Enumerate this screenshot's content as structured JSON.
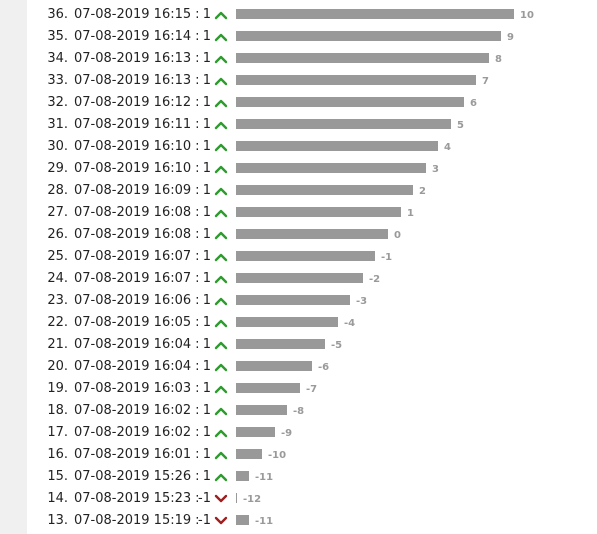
{
  "colors": {
    "up": "#2e9b2e",
    "down": "#a01e1e",
    "bar": "#999999",
    "score": "#9a9a9a"
  },
  "entries": [
    {
      "rank": "36.",
      "timestamp": "07-08-2019 16:15",
      "separator": ":",
      "vote": "1",
      "direction": "up",
      "score": "10",
      "score_value": 10
    },
    {
      "rank": "35.",
      "timestamp": "07-08-2019 16:14",
      "separator": ":",
      "vote": "1",
      "direction": "up",
      "score": "9",
      "score_value": 9
    },
    {
      "rank": "34.",
      "timestamp": "07-08-2019 16:13",
      "separator": ":",
      "vote": "1",
      "direction": "up",
      "score": "8",
      "score_value": 8
    },
    {
      "rank": "33.",
      "timestamp": "07-08-2019 16:13",
      "separator": ":",
      "vote": "1",
      "direction": "up",
      "score": "7",
      "score_value": 7
    },
    {
      "rank": "32.",
      "timestamp": "07-08-2019 16:12",
      "separator": ":",
      "vote": "1",
      "direction": "up",
      "score": "6",
      "score_value": 6
    },
    {
      "rank": "31.",
      "timestamp": "07-08-2019 16:11",
      "separator": ":",
      "vote": "1",
      "direction": "up",
      "score": "5",
      "score_value": 5
    },
    {
      "rank": "30.",
      "timestamp": "07-08-2019 16:10",
      "separator": ":",
      "vote": "1",
      "direction": "up",
      "score": "4",
      "score_value": 4
    },
    {
      "rank": "29.",
      "timestamp": "07-08-2019 16:10",
      "separator": ":",
      "vote": "1",
      "direction": "up",
      "score": "3",
      "score_value": 3
    },
    {
      "rank": "28.",
      "timestamp": "07-08-2019 16:09",
      "separator": ":",
      "vote": "1",
      "direction": "up",
      "score": "2",
      "score_value": 2
    },
    {
      "rank": "27.",
      "timestamp": "07-08-2019 16:08",
      "separator": ":",
      "vote": "1",
      "direction": "up",
      "score": "1",
      "score_value": 1
    },
    {
      "rank": "26.",
      "timestamp": "07-08-2019 16:08",
      "separator": ":",
      "vote": "1",
      "direction": "up",
      "score": "0",
      "score_value": 0
    },
    {
      "rank": "25.",
      "timestamp": "07-08-2019 16:07",
      "separator": ":",
      "vote": "1",
      "direction": "up",
      "score": "-1",
      "score_value": -1
    },
    {
      "rank": "24.",
      "timestamp": "07-08-2019 16:07",
      "separator": ":",
      "vote": "1",
      "direction": "up",
      "score": "-2",
      "score_value": -2
    },
    {
      "rank": "23.",
      "timestamp": "07-08-2019 16:06",
      "separator": ":",
      "vote": "1",
      "direction": "up",
      "score": "-3",
      "score_value": -3
    },
    {
      "rank": "22.",
      "timestamp": "07-08-2019 16:05",
      "separator": ":",
      "vote": "1",
      "direction": "up",
      "score": "-4",
      "score_value": -4
    },
    {
      "rank": "21.",
      "timestamp": "07-08-2019 16:04",
      "separator": ":",
      "vote": "1",
      "direction": "up",
      "score": "-5",
      "score_value": -5
    },
    {
      "rank": "20.",
      "timestamp": "07-08-2019 16:04",
      "separator": ":",
      "vote": "1",
      "direction": "up",
      "score": "-6",
      "score_value": -6
    },
    {
      "rank": "19.",
      "timestamp": "07-08-2019 16:03",
      "separator": ":",
      "vote": "1",
      "direction": "up",
      "score": "-7",
      "score_value": -7
    },
    {
      "rank": "18.",
      "timestamp": "07-08-2019 16:02",
      "separator": ":",
      "vote": "1",
      "direction": "up",
      "score": "-8",
      "score_value": -8
    },
    {
      "rank": "17.",
      "timestamp": "07-08-2019 16:02",
      "separator": ":",
      "vote": "1",
      "direction": "up",
      "score": "-9",
      "score_value": -9
    },
    {
      "rank": "16.",
      "timestamp": "07-08-2019 16:01",
      "separator": ":",
      "vote": "1",
      "direction": "up",
      "score": "-10",
      "score_value": -10
    },
    {
      "rank": "15.",
      "timestamp": "07-08-2019 15:26",
      "separator": ":",
      "vote": "1",
      "direction": "up",
      "score": "-11",
      "score_value": -11
    },
    {
      "rank": "14.",
      "timestamp": "07-08-2019 15:23",
      "separator": ":",
      "vote": "-1",
      "direction": "down",
      "score": "-12",
      "score_value": -12
    },
    {
      "rank": "13.",
      "timestamp": "07-08-2019 15:19",
      "separator": ":",
      "vote": "-1",
      "direction": "down",
      "score": "-11",
      "score_value": -11
    }
  ]
}
